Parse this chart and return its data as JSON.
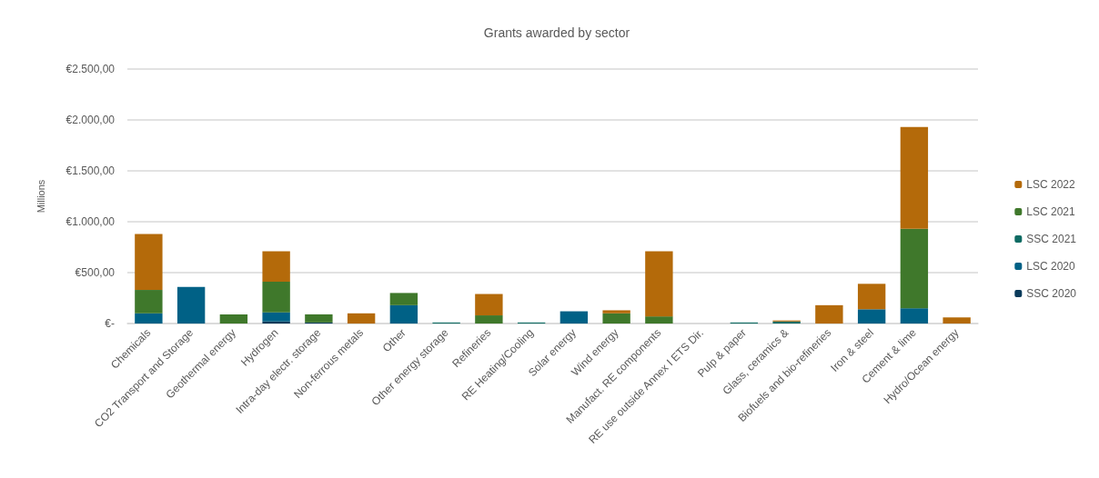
{
  "chart_data": {
    "type": "bar",
    "title": "Grants awarded by sector",
    "ylabel": "Millions",
    "stacked": true,
    "grid": "y",
    "legend": "right",
    "categories": [
      "Chemicals",
      "CO2 Transport and Storage",
      "Geothermal energy",
      "Hydrogen",
      "Intra-day electr. storage",
      "Non-ferrous metals",
      "Other",
      "Other energy storage",
      "Refineries",
      "RE Heating/Cooling",
      "Solar energy",
      "Wind energy",
      "Manufact. RE components",
      "RE use outside Annex I ETS Dir.",
      "Pulp & paper",
      "Glass, ceramics &",
      "Biofuels and bio-refineries",
      "Iron & steel",
      "Cement & lime",
      "Hydro/Ocean energy"
    ],
    "ylim": [
      0,
      2500
    ],
    "yticks": [
      {
        "value": 0,
        "label": "€-"
      },
      {
        "value": 500,
        "label": "€500,00"
      },
      {
        "value": 1000,
        "label": "€1.000,00"
      },
      {
        "value": 1500,
        "label": "€1.500,00"
      },
      {
        "value": 2000,
        "label": "€2.000,00"
      },
      {
        "value": 2500,
        "label": "€2.500,00"
      }
    ],
    "series": [
      {
        "name": "SSC 2020",
        "color": "#0a3a5a",
        "values": [
          null,
          null,
          null,
          20,
          10,
          null,
          null,
          null,
          null,
          null,
          null,
          null,
          null,
          null,
          null,
          null,
          null,
          null,
          null,
          null
        ]
      },
      {
        "name": "LSC 2020",
        "color": "#006186",
        "values": [
          100,
          360,
          null,
          90,
          null,
          null,
          180,
          null,
          null,
          null,
          120,
          null,
          null,
          null,
          null,
          null,
          null,
          140,
          150,
          null
        ]
      },
      {
        "name": "SSC 2021",
        "color": "#0d6b63",
        "values": [
          null,
          null,
          null,
          null,
          null,
          null,
          null,
          10,
          null,
          10,
          null,
          null,
          null,
          null,
          10,
          20,
          null,
          null,
          null,
          null
        ]
      },
      {
        "name": "LSC 2021",
        "color": "#3f782b",
        "values": [
          230,
          null,
          90,
          300,
          80,
          null,
          120,
          null,
          80,
          null,
          null,
          100,
          70,
          null,
          null,
          null,
          null,
          null,
          780,
          null
        ]
      },
      {
        "name": "LSC 2022",
        "color": "#b46a0a",
        "values": [
          550,
          null,
          null,
          300,
          null,
          100,
          null,
          null,
          210,
          null,
          null,
          30,
          640,
          null,
          null,
          10,
          180,
          250,
          1000,
          60
        ]
      }
    ]
  }
}
